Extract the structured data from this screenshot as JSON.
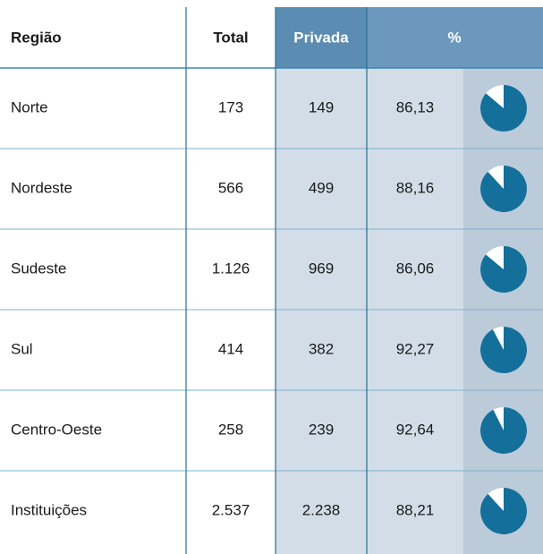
{
  "table": {
    "header": [
      "Região",
      "Total",
      "Privada",
      "%"
    ],
    "rows": [
      [
        "Norte",
        "173",
        "149",
        {
          "value": 86.13,
          "label": "86,13"
        }
      ],
      [
        "Nordeste",
        "566",
        "499",
        {
          "value": 88.16,
          "label": "88,16"
        }
      ],
      [
        "Sudeste",
        "1.126",
        "969",
        {
          "value": 86.06,
          "label": "86,06"
        }
      ],
      [
        "Sul",
        "414",
        "382",
        {
          "value": 92.27,
          "label": "92,27"
        }
      ],
      [
        "Centro-Oeste",
        "258",
        "239",
        {
          "value": 92.64,
          "label": "92,64"
        }
      ],
      [
        "Instituições",
        "2.537",
        "2.238",
        {
          "value": 88.21,
          "label": "88,21"
        }
      ]
    ]
  }
}
